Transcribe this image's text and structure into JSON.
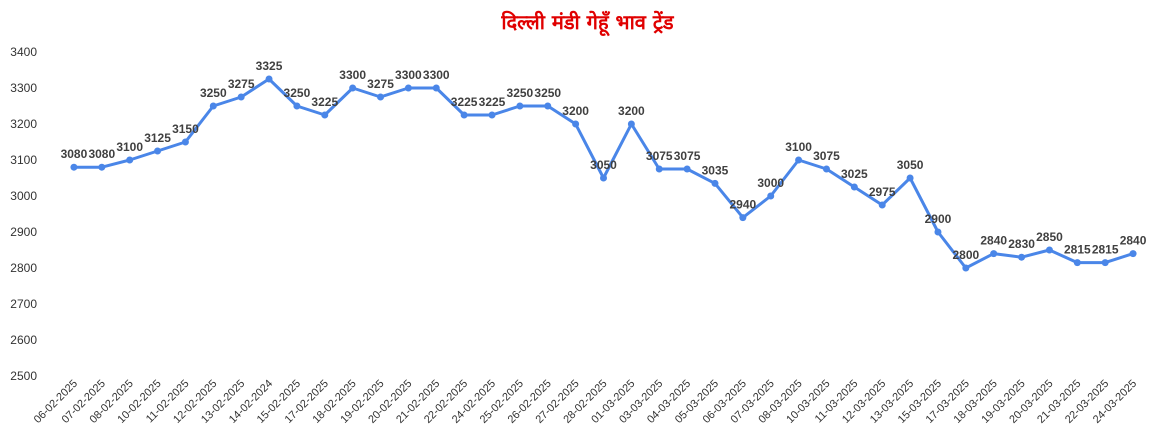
{
  "chart_data": {
    "type": "line",
    "title": "दिल्ली मंडी गेहूँ भाव ट्रेंड",
    "xlabel": "",
    "ylabel": "",
    "ylim": [
      2500,
      3400
    ],
    "yticks": [
      2500,
      2600,
      2700,
      2800,
      2900,
      3000,
      3100,
      3200,
      3300,
      3400
    ],
    "grid": false,
    "line_color": "#4a86e8",
    "title_color": "#e00000",
    "categories": [
      "06-02-2025",
      "07-02-2025",
      "08-02-2025",
      "10-02-2025",
      "11-02-2025",
      "12-02-2025",
      "13-02-2025",
      "14-02-2024",
      "15-02-2025",
      "17-02-2025",
      "18-02-2025",
      "19-02-2025",
      "20-02-2025",
      "21-02-2025",
      "22-02-2025",
      "24-02-2025",
      "25-02-2025",
      "26-02-2025",
      "27-02-2025",
      "28-02-2025",
      "01-03-2025",
      "03-03-2025",
      "04-03-2025",
      "05-03-2025",
      "06-03-2025",
      "07-03-2025",
      "08-03-2025",
      "10-03-2025",
      "11-03-2025",
      "12-03-2025",
      "13-03-2025",
      "15-03-2025",
      "17-03-2025",
      "18-03-2025",
      "19-03-2025",
      "20-03-2025",
      "21-03-2025",
      "22-03-2025",
      "24-03-2025"
    ],
    "series": [
      {
        "values": [
          3080,
          3080,
          3100,
          3125,
          3150,
          3250,
          3275,
          3325,
          3250,
          3225,
          3300,
          3275,
          3300,
          3300,
          3225,
          3225,
          3250,
          3250,
          3200,
          3050,
          3200,
          3075,
          3075,
          3035,
          2940,
          3000,
          3100,
          3075,
          3025,
          2975,
          3050,
          2900,
          2800,
          2840,
          2830,
          2850,
          2815,
          2815,
          2840
        ]
      }
    ]
  }
}
